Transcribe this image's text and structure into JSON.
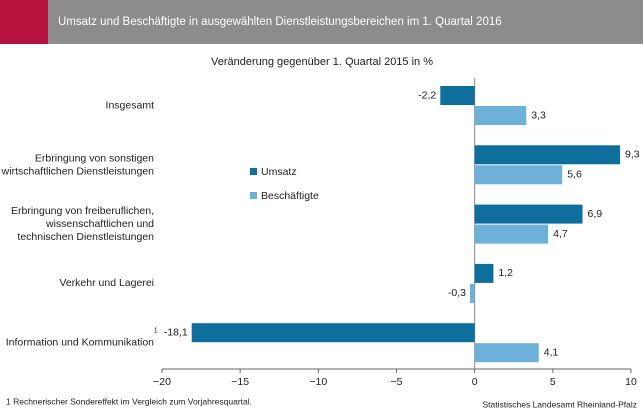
{
  "chart_data": {
    "type": "hbar",
    "title": "Umsatz und Beschäftigte in ausgewählten Dienstleistungsbereichen im 1. Quartal 2016",
    "subtitle": "Veränderung gegenüber 1. Quartal 2015 in %",
    "categories": [
      "Insgesamt",
      "Erbringung von sonstigen\nwirtschaftlichen Dienstleistungen",
      "Erbringung von freiberuflichen,\nwissenschaftlichen und\ntechnischen Dienstleistungen",
      "Verkehr und Lagerei",
      "Information und Kommunikation"
    ],
    "series": [
      {
        "name": "Umsatz",
        "color": "#0e6f9c",
        "values": [
          -2.2,
          9.3,
          6.9,
          1.2,
          -18.1
        ],
        "value_labels": [
          "-2,2",
          "9,3",
          "6,9",
          "1,2",
          "-18,1"
        ]
      },
      {
        "name": "Beschäftigte",
        "color": "#6db1d8",
        "values": [
          3.3,
          5.6,
          4.7,
          -0.3,
          4.1
        ],
        "value_labels": [
          "3,3",
          "5,6",
          "4,7",
          "-0,3",
          "4,1"
        ]
      }
    ],
    "footnote_marker": "1",
    "xlim": [
      -20,
      10
    ],
    "xticks": [
      {
        "value": -20,
        "label": "−20"
      },
      {
        "value": -15,
        "label": "−15"
      },
      {
        "value": -10,
        "label": "−10"
      },
      {
        "value": -5,
        "label": "−5"
      },
      0,
      5,
      10
    ],
    "footnote": "1 Rechnerischer Sondereffekt im Vergleich zum Vorjahresquartal.",
    "source": "Statistisches Landesamt Rheinland-Pfalz"
  }
}
